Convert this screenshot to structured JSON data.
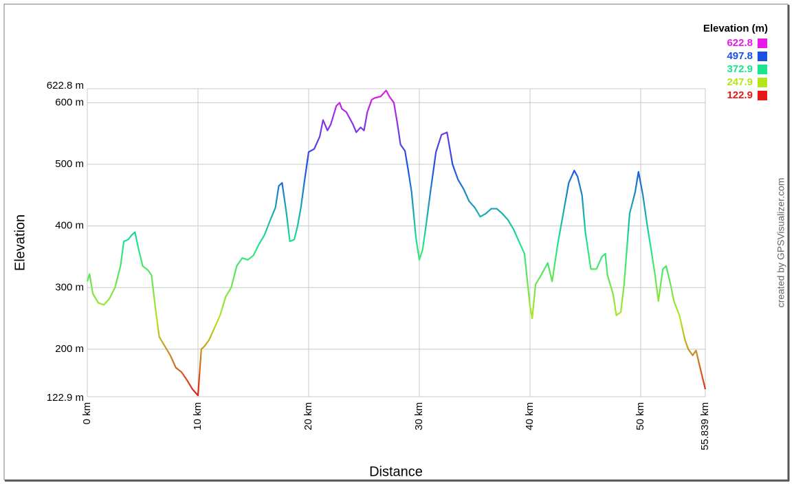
{
  "chart_data": {
    "type": "line",
    "xlabel": "Distance",
    "ylabel": "Elevation",
    "credit": "created by GPSVisualizer.com",
    "xlim": [
      0,
      55.839
    ],
    "ylim": [
      122.9,
      622.8
    ],
    "xticks": [
      {
        "value": 0,
        "label": "0 km"
      },
      {
        "value": 10,
        "label": "10 km"
      },
      {
        "value": 20,
        "label": "20 km"
      },
      {
        "value": 30,
        "label": "30 km"
      },
      {
        "value": 40,
        "label": "40 km"
      },
      {
        "value": 50,
        "label": "50 km"
      },
      {
        "value": 55.839,
        "label": "55.839 km"
      }
    ],
    "yticks": [
      {
        "value": 122.9,
        "label": "122.9 m"
      },
      {
        "value": 200,
        "label": "200 m"
      },
      {
        "value": 300,
        "label": "300 m"
      },
      {
        "value": 400,
        "label": "400 m"
      },
      {
        "value": 500,
        "label": "500 m"
      },
      {
        "value": 600,
        "label": "600 m"
      },
      {
        "value": 622.8,
        "label": "622.8 m"
      }
    ],
    "grid": true,
    "color_scale": {
      "title": "Elevation (m)",
      "stops": [
        {
          "value": 622.8,
          "color": "#e619e6"
        },
        {
          "value": 497.8,
          "color": "#1a4fe6"
        },
        {
          "value": 372.9,
          "color": "#19e68c"
        },
        {
          "value": 247.9,
          "color": "#b3e619"
        },
        {
          "value": 122.9,
          "color": "#e61919"
        }
      ]
    },
    "x": [
      0,
      0.2,
      0.5,
      1,
      1.5,
      2,
      2.5,
      3,
      3.3,
      3.7,
      4,
      4.3,
      4.6,
      5,
      5.5,
      5.8,
      6.2,
      6.5,
      7,
      7.5,
      8,
      8.5,
      9,
      9.5,
      10,
      10.3,
      10.6,
      11,
      11.5,
      12,
      12.5,
      13,
      13.5,
      14,
      14.5,
      15,
      15.5,
      16,
      16.5,
      17,
      17.3,
      17.6,
      18,
      18.3,
      18.7,
      19,
      19.3,
      19.6,
      20,
      20.5,
      21,
      21.3,
      21.7,
      22,
      22.5,
      22.8,
      23,
      23.4,
      23.7,
      24,
      24.3,
      24.7,
      25,
      25.3,
      25.7,
      26,
      26.5,
      27,
      27.3,
      27.7,
      28,
      28.3,
      28.7,
      29,
      29.3,
      29.7,
      30,
      30.3,
      30.6,
      31,
      31.5,
      32,
      32.5,
      33,
      33.5,
      34,
      34.5,
      35,
      35.5,
      36,
      36.5,
      37,
      37.5,
      38,
      38.5,
      39,
      39.5,
      40,
      40.2,
      40.5,
      41,
      41.3,
      41.6,
      42,
      42.5,
      43,
      43.5,
      44,
      44.3,
      44.7,
      45,
      45.5,
      46,
      46.5,
      46.8,
      47,
      47.5,
      47.8,
      48.2,
      48.5,
      49,
      49.5,
      49.8,
      50.2,
      50.6,
      51,
      51.3,
      51.6,
      52,
      52.3,
      52.7,
      53,
      53.5,
      54,
      54.3,
      54.7,
      55,
      55.3,
      55.839
    ],
    "values": [
      310,
      322,
      290,
      275,
      272,
      282,
      300,
      335,
      375,
      378,
      385,
      390,
      365,
      335,
      328,
      320,
      260,
      220,
      205,
      190,
      170,
      163,
      150,
      135,
      125,
      200,
      205,
      215,
      235,
      255,
      285,
      300,
      335,
      348,
      345,
      352,
      370,
      385,
      408,
      430,
      465,
      470,
      420,
      375,
      378,
      400,
      430,
      470,
      520,
      525,
      545,
      572,
      555,
      565,
      595,
      600,
      590,
      585,
      575,
      565,
      552,
      560,
      555,
      585,
      605,
      608,
      610,
      620,
      610,
      600,
      568,
      532,
      522,
      490,
      455,
      380,
      345,
      362,
      400,
      455,
      520,
      548,
      552,
      500,
      475,
      460,
      440,
      430,
      415,
      420,
      428,
      428,
      420,
      410,
      395,
      375,
      355,
      270,
      250,
      305,
      320,
      330,
      340,
      310,
      370,
      420,
      470,
      490,
      480,
      450,
      390,
      330,
      330,
      350,
      355,
      320,
      290,
      255,
      260,
      305,
      420,
      455,
      488,
      450,
      400,
      355,
      320,
      278,
      330,
      335,
      305,
      278,
      255,
      215,
      200,
      190,
      198,
      175,
      135
    ]
  }
}
